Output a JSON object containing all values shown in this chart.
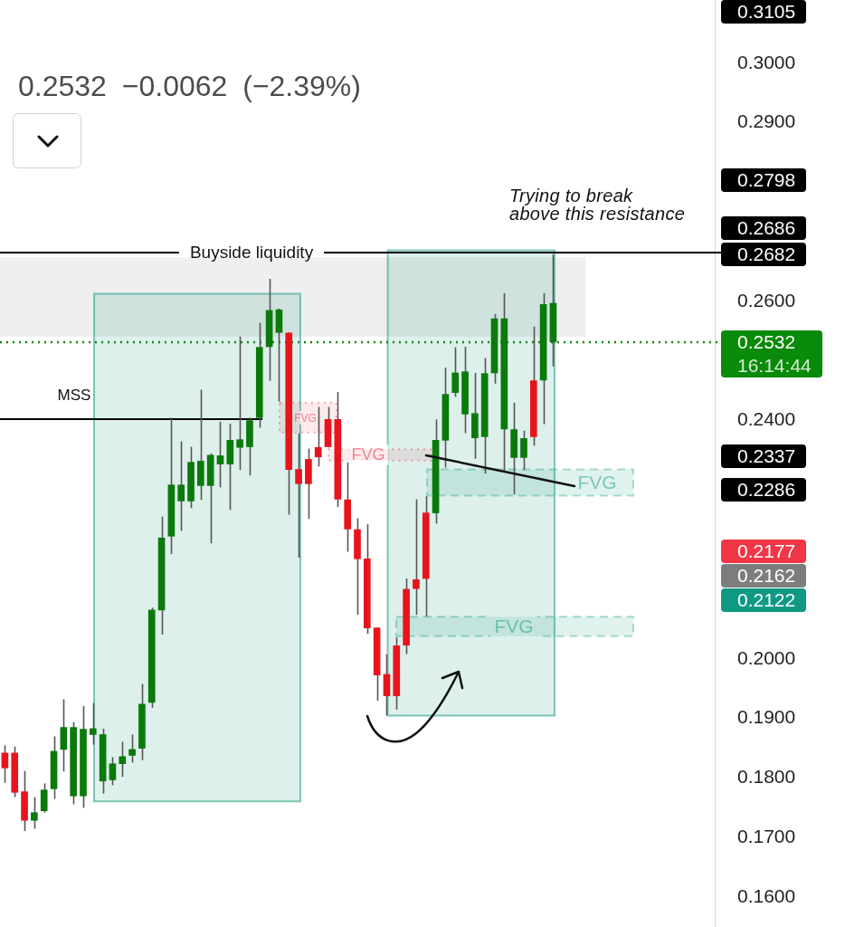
{
  "chart_data": {
    "type": "candlestick",
    "subtitle": "0.2532 −0.0062 (−2.39%)",
    "categories": [
      null,
      null,
      null,
      null,
      null,
      null,
      null,
      null,
      null,
      null,
      null,
      null,
      null,
      null,
      null,
      null,
      null,
      null,
      null,
      null,
      null,
      null,
      null,
      null,
      null,
      null,
      null,
      null,
      null,
      null,
      null,
      null,
      null,
      null,
      null,
      null,
      null,
      null,
      null,
      null,
      null,
      null,
      null,
      null,
      null,
      null,
      null,
      null,
      null,
      null,
      null,
      null,
      null,
      null,
      null,
      null,
      null,
      null,
      null,
      null,
      null,
      null,
      null,
      null,
      null,
      null,
      null,
      null,
      null,
      null,
      null,
      null,
      null
    ],
    "ohlc": [
      [
        0.1842,
        0.1855,
        0.1792,
        0.1817
      ],
      [
        0.1842,
        0.1853,
        0.1768,
        0.1776
      ],
      [
        0.1777,
        0.1812,
        0.1711,
        0.1729
      ],
      [
        0.1729,
        0.1768,
        0.1715,
        0.1742
      ],
      [
        0.1745,
        0.1791,
        0.1742,
        0.178
      ],
      [
        0.1782,
        0.187,
        0.1765,
        0.1845
      ],
      [
        0.1848,
        0.1932,
        0.1811,
        0.1885
      ],
      [
        0.177,
        0.1894,
        0.1756,
        0.1885
      ],
      [
        0.177,
        0.1921,
        0.175,
        0.1882
      ],
      [
        0.1873,
        0.1926,
        0.1856,
        0.1883
      ],
      [
        0.1795,
        0.1883,
        0.1774,
        0.1873
      ],
      [
        0.1797,
        0.1835,
        0.1788,
        0.1824
      ],
      [
        0.1824,
        0.1861,
        0.1802,
        0.1836
      ],
      [
        0.1838,
        0.1873,
        0.1826,
        0.1848
      ],
      [
        0.185,
        0.1958,
        0.183,
        0.1924
      ],
      [
        0.1927,
        0.2086,
        0.1918,
        0.2082
      ],
      [
        0.2082,
        0.2239,
        0.2041,
        0.2203
      ],
      [
        0.2206,
        0.2405,
        0.2176,
        0.2292
      ],
      [
        0.2265,
        0.2365,
        0.2215,
        0.2292
      ],
      [
        0.2265,
        0.2356,
        0.2253,
        0.233
      ],
      [
        0.2291,
        0.2452,
        0.2267,
        0.2332
      ],
      [
        0.2291,
        0.2345,
        0.2194,
        0.2342
      ],
      [
        0.2327,
        0.2398,
        0.2288,
        0.2341
      ],
      [
        0.2327,
        0.2395,
        0.225,
        0.2367
      ],
      [
        0.2355,
        0.2541,
        0.2317,
        0.2368
      ],
      [
        0.2356,
        0.2405,
        0.2308,
        0.24
      ],
      [
        0.2405,
        0.2564,
        0.2388,
        0.2523
      ],
      [
        0.2524,
        0.2638,
        0.2467,
        0.2585
      ],
      [
        0.2548,
        0.2588,
        0.2432,
        0.2586
      ],
      [
        0.2547,
        0.2548,
        0.2242,
        0.2318
      ],
      [
        0.2318,
        0.2379,
        0.217,
        0.2294
      ],
      [
        0.2335,
        0.2353,
        0.2235,
        0.2294
      ],
      [
        0.2355,
        0.2423,
        0.2323,
        0.2339
      ],
      [
        0.2402,
        0.2423,
        0.2355,
        0.2356
      ],
      [
        0.2402,
        0.2448,
        0.2255,
        0.2268
      ],
      [
        0.2267,
        0.233,
        0.218,
        0.2218
      ],
      [
        0.2217,
        0.2236,
        0.2074,
        0.2168
      ],
      [
        0.2168,
        0.2226,
        0.2042,
        0.2052
      ],
      [
        0.2052,
        0.2053,
        0.193,
        0.1973
      ],
      [
        0.1974,
        0.2008,
        0.1905,
        0.1938
      ],
      [
        0.2022,
        0.2036,
        0.1915,
        0.1938
      ],
      [
        0.2117,
        0.2135,
        0.2008,
        0.2023
      ],
      [
        0.2133,
        0.2268,
        0.2074,
        0.2118
      ],
      [
        0.2245,
        0.2273,
        0.2071,
        0.2135
      ],
      [
        0.2245,
        0.2402,
        0.2227,
        0.2367
      ],
      [
        0.2367,
        0.2489,
        0.2321,
        0.2444
      ],
      [
        0.2447,
        0.2523,
        0.244,
        0.248
      ],
      [
        0.2411,
        0.2524,
        0.2379,
        0.2482
      ],
      [
        0.2371,
        0.248,
        0.2336,
        0.2412
      ],
      [
        0.2373,
        0.2505,
        0.2311,
        0.2479
      ],
      [
        0.248,
        0.2579,
        0.2462,
        0.2571
      ],
      [
        0.2386,
        0.2614,
        0.2315,
        0.2571
      ],
      [
        0.2338,
        0.243,
        0.2276,
        0.2385
      ],
      [
        0.2338,
        0.2383,
        0.2317,
        0.237
      ],
      [
        0.2467,
        0.2558,
        0.2358,
        0.2373
      ],
      [
        0.2468,
        0.2614,
        0.2394,
        0.2595
      ],
      [
        0.2532,
        0.2679,
        0.2491,
        0.2597
      ],
      null,
      null,
      null,
      null,
      null,
      null,
      null,
      null,
      null,
      null,
      null,
      null,
      null,
      null,
      null,
      null
    ],
    "colors": [
      "#e8141c",
      "#e8141c",
      "#e8141c",
      "#0a7a0a",
      "#0a7a0a",
      "#0a7a0a",
      "#0a7a0a",
      "#0a7a0a",
      "#0a7a0a",
      "#0a7a0a",
      "#0a7a0a",
      "#0a7a0a",
      "#0a7a0a",
      "#0a7a0a",
      "#0a7a0a",
      "#0a7a0a",
      "#0a7a0a",
      "#0a7a0a",
      "#0a7a0a",
      "#0a7a0a",
      "#0a7a0a",
      "#0a7a0a",
      "#0a7a0a",
      "#0a7a0a",
      "#0a7a0a",
      "#0a7a0a",
      "#0a7a0a",
      "#0a7a0a",
      "#0a7a0a",
      "#e8141c",
      "#e8141c",
      "#e8141c",
      "#e8141c",
      "#e8141c",
      "#e8141c",
      "#e8141c",
      "#e8141c",
      "#e8141c",
      "#e8141c",
      "#e8141c",
      "#e8141c",
      "#e8141c",
      "#e8141c",
      "#e8141c",
      "#0a7a0a",
      "#0a7a0a",
      "#0a7a0a",
      "#0a7a0a",
      "#0a7a0a",
      "#0a7a0a",
      "#0a7a0a",
      "#0a7a0a",
      "#0a7a0a",
      "#0a7a0a",
      "#e8141c",
      "#0a7a0a",
      "#0a7a0a",
      null,
      null,
      null,
      null,
      null,
      null,
      null,
      null,
      null,
      null,
      null,
      null,
      null,
      null,
      null,
      null
    ],
    "ylim": [
      0.155,
      0.3106
    ],
    "yticks": [
      {
        "value": 0.16,
        "label": "0.1600"
      },
      {
        "value": 0.17,
        "label": "0.1700"
      },
      {
        "value": 0.18,
        "label": "0.1800"
      },
      {
        "value": 0.19,
        "label": "0.1900"
      },
      {
        "value": 0.2,
        "label": "0.2000"
      },
      {
        "value": 0.24,
        "label": "0.2400"
      },
      {
        "value": 0.26,
        "label": "0.2600"
      },
      {
        "value": 0.29,
        "label": "0.2900"
      },
      {
        "value": 0.3,
        "label": "0.3000"
      }
    ],
    "tick_labels": "y",
    "ref_lines": [
      {
        "axis": "y",
        "value": 0.2682,
        "label": "Buyside liquidity",
        "color": "#000000",
        "line_style": "solid"
      },
      {
        "axis": "y",
        "value": 0.2532,
        "label": "0.2532",
        "color": "#0a8a0a",
        "line_style": "dotted"
      },
      {
        "axis": "y",
        "value": 0.2403,
        "label": "MSS",
        "color": "#000000",
        "line_style": "solid"
      }
    ],
    "bands": [
      {
        "axis": "y",
        "from": 0.2541,
        "to": 0.2674,
        "color": "#efefef"
      },
      {
        "axis": "y",
        "from": 0.1761,
        "to": 0.2613,
        "color": "#ddf0ec"
      },
      {
        "axis": "y",
        "from": 0.1905,
        "to": 0.2686,
        "color": "#ddf0ec"
      },
      {
        "axis": "y",
        "from": 0.238,
        "to": 0.243,
        "label": "FVG",
        "color": "#fdeaec"
      },
      {
        "axis": "y",
        "from": 0.2333,
        "to": 0.2352,
        "label": "FVG",
        "color": "#fdeaec"
      },
      {
        "axis": "y",
        "from": 0.2274,
        "to": 0.2318,
        "label": "FVG",
        "color": "#e0f2ee"
      },
      {
        "axis": "y",
        "from": 0.2038,
        "to": 0.2071,
        "label": "FVG",
        "color": "#e0f2ee"
      }
    ],
    "annotations": [
      "Trying to break\nabove this resistance",
      "16:14:44",
      "0.3105",
      "0.2798",
      "0.2686",
      "0.2682",
      "0.2337",
      "0.2286",
      "0.2177",
      "0.2162",
      "0.2122"
    ]
  }
}
